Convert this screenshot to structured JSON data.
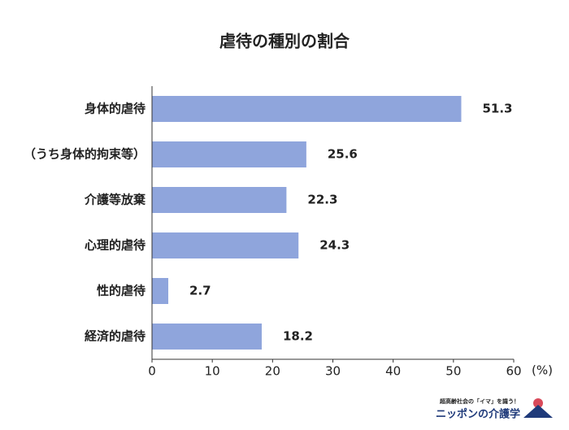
{
  "chart_data": {
    "type": "barh",
    "title": "虐待の種別の割合",
    "categories": [
      "身体的虐待",
      "（うち身体的拘束等）",
      "介護等放棄",
      "心理的虐待",
      "性的虐待",
      "経済的虐待"
    ],
    "values": [
      51.3,
      25.6,
      22.3,
      24.3,
      2.7,
      18.2
    ],
    "color": "#8fa5dc",
    "xlim": [
      0,
      60
    ],
    "xticks": [
      0,
      10,
      20,
      30,
      40,
      50,
      60
    ],
    "xlabel": "(%)",
    "logo": {
      "tagline": "超高齢社会の「イマ」を識う！",
      "name": "ニッポンの介護学"
    }
  }
}
